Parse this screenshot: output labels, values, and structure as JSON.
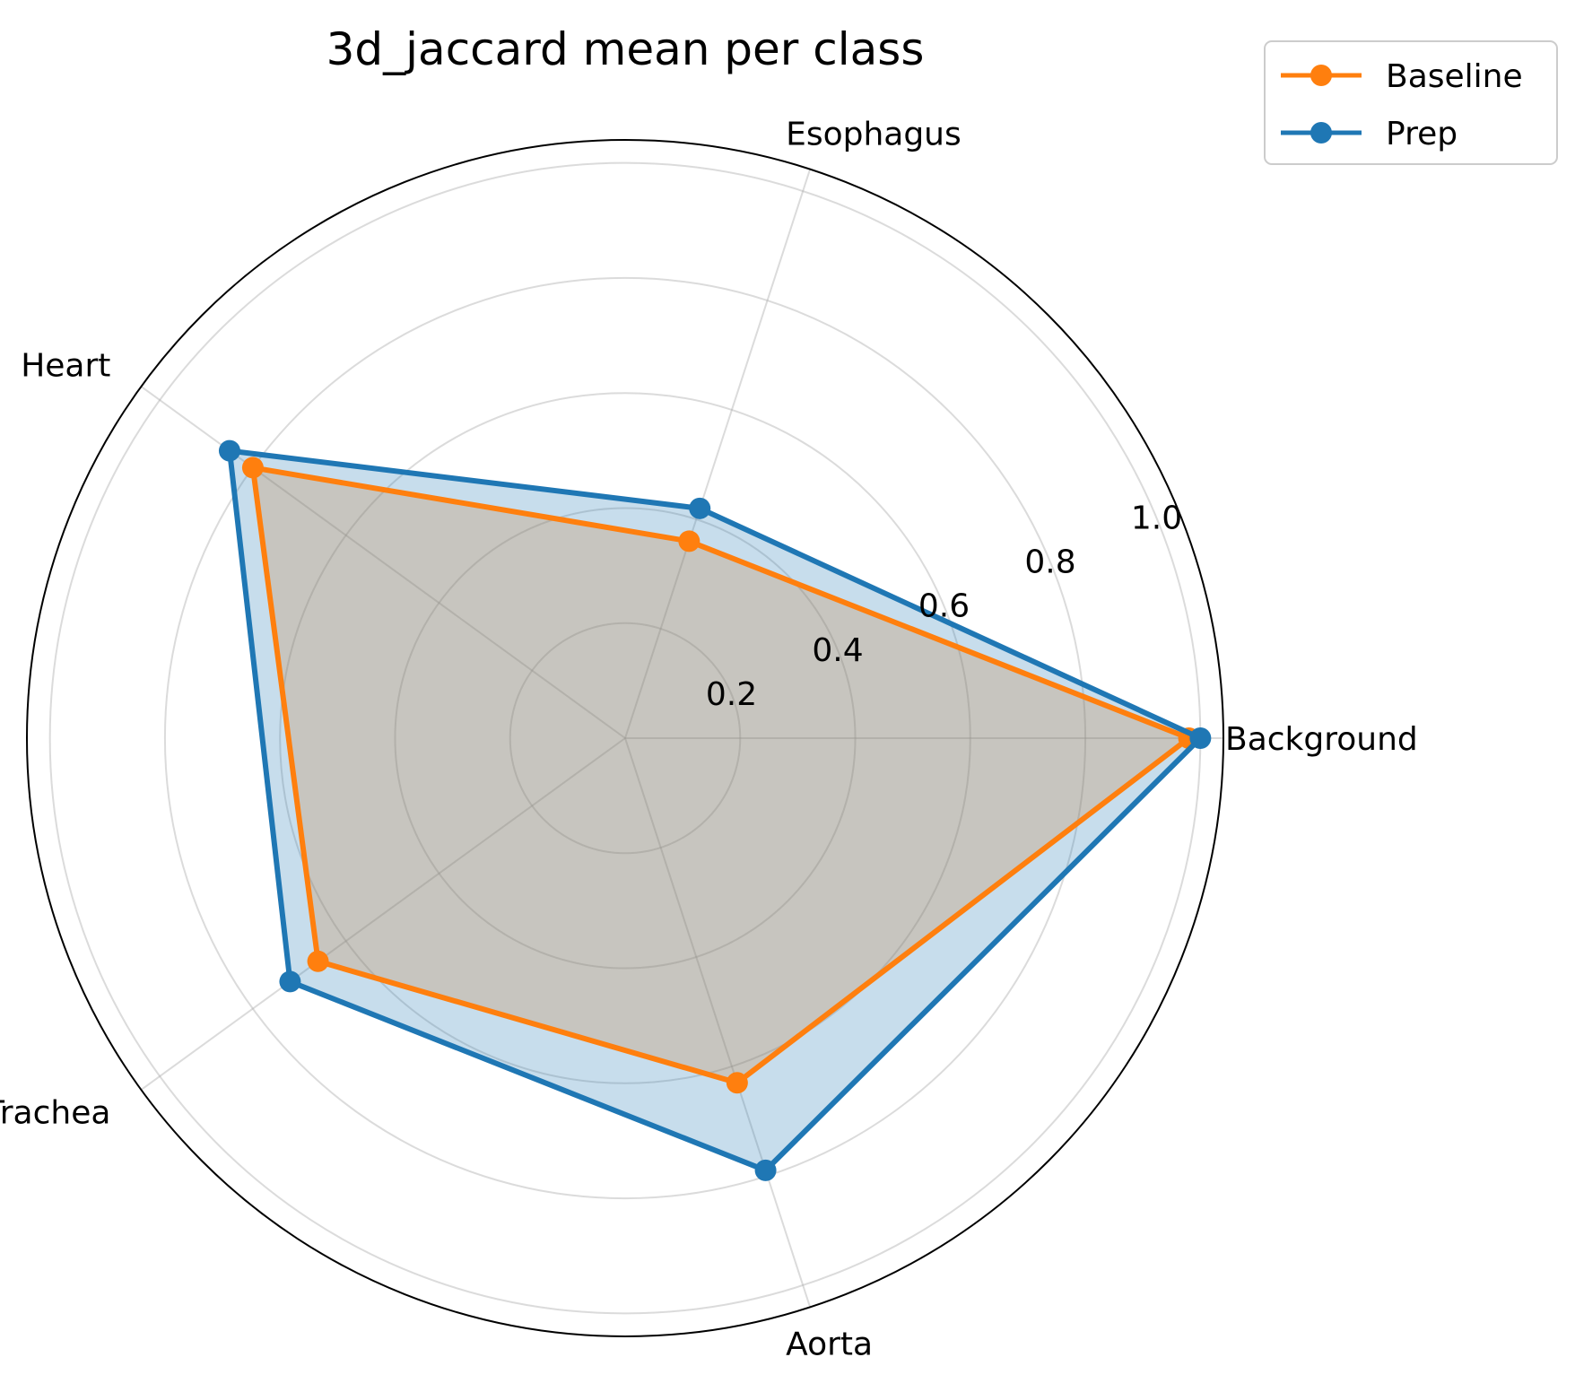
{
  "chart_data": {
    "type": "radar",
    "title": "3d_jaccard mean per class",
    "categories": [
      "Background",
      "Esophagus",
      "Heart",
      "Trachea",
      "Aorta"
    ],
    "rlim": [
      0,
      1.04
    ],
    "rticks": [
      "0.2",
      "0.4",
      "0.6",
      "0.8",
      "1.0"
    ],
    "rtick_values": [
      0.2,
      0.4,
      0.6,
      0.8,
      1.0
    ],
    "grid": true,
    "legend_position": "top-right",
    "series": [
      {
        "name": "Baseline",
        "color": "#ff7f0e",
        "values": [
          0.98,
          0.36,
          0.8,
          0.66,
          0.63
        ]
      },
      {
        "name": "Prep",
        "color": "#1f77b4",
        "values": [
          1.0,
          0.42,
          0.85,
          0.72,
          0.79
        ]
      }
    ]
  }
}
